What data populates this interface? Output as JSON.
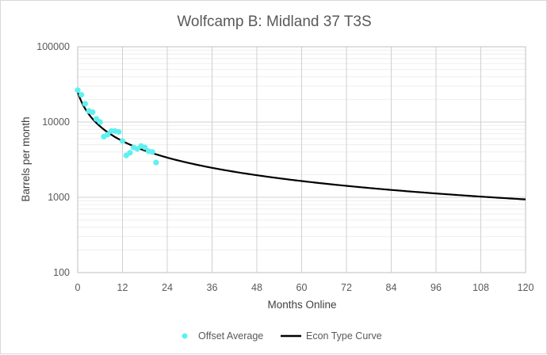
{
  "chart_data": {
    "type": "scatter",
    "title": "Wolfcamp B: Midland 37 T3S",
    "xlabel": "Months Online",
    "ylabel": "Barrels per month",
    "xlim": [
      0,
      120
    ],
    "ylim": [
      100,
      100000
    ],
    "y_scale": "log",
    "x_ticks": [
      0,
      12,
      24,
      36,
      48,
      60,
      72,
      84,
      96,
      108,
      120
    ],
    "y_ticks": [
      100,
      1000,
      10000,
      100000
    ],
    "grid": true,
    "legend_position": "bottom",
    "series": [
      {
        "name": "Offset Average",
        "kind": "scatter",
        "color": "#5ff0f0",
        "x": [
          0,
          1,
          2,
          3,
          4,
          5,
          6,
          7,
          8,
          9,
          10,
          11,
          12,
          13,
          14,
          15,
          16,
          17,
          18,
          19,
          20,
          21
        ],
        "y": [
          26500,
          23000,
          17500,
          14000,
          13500,
          11000,
          10000,
          6400,
          6800,
          7600,
          7600,
          7400,
          5600,
          3600,
          3900,
          4600,
          4400,
          4800,
          4600,
          4100,
          4000,
          2900
        ]
      },
      {
        "name": "Econ Type Curve",
        "kind": "line",
        "color": "#000000",
        "model": {
          "qi": 25000,
          "di": 0.35,
          "b": 1.2
        }
      }
    ]
  }
}
